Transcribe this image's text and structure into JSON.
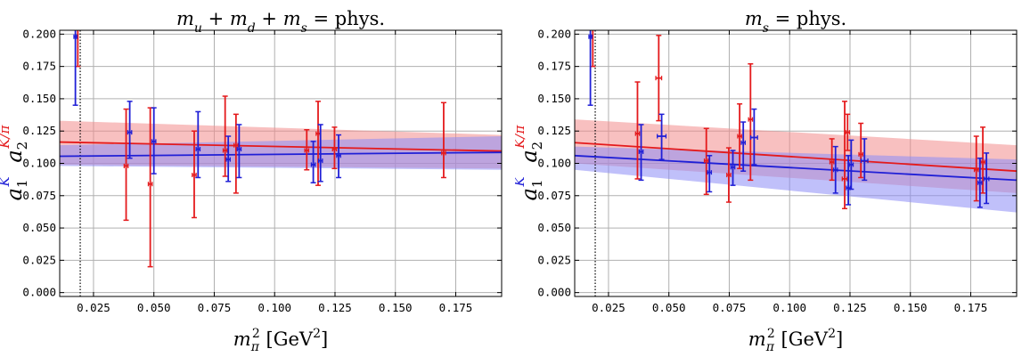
{
  "chart_data": [
    {
      "type": "scatter",
      "title": "m_u + m_d + m_s = phys.",
      "xlabel": "m_π² [GeV²]",
      "ylabel": "a_1^K  a_2^{K/π}",
      "xlim": [
        0.011,
        0.194
      ],
      "ylim": [
        -0.003,
        0.203
      ],
      "xticks": [
        "0.025",
        "0.050",
        "0.075",
        "0.100",
        "0.125",
        "0.150",
        "0.175"
      ],
      "yticks": [
        "0.000",
        "0.025",
        "0.050",
        "0.075",
        "0.100",
        "0.125",
        "0.150",
        "0.175",
        "0.200"
      ],
      "grid": true,
      "physical_point_x": 0.0195,
      "series": [
        {
          "color": "#e41a1c",
          "band_color": "#f28c8c",
          "fit": {
            "x": [
              0.011,
              0.194
            ],
            "y": [
              0.1165,
              0.1095
            ],
            "lo": [
              0.099,
              0.096
            ],
            "hi": [
              0.133,
              0.122
            ]
          },
          "points": [
            {
              "x": 0.0185,
              "y": 0.215,
              "ylo": 0.175,
              "yhi": 0.255,
              "xerr": 0.0006
            },
            {
              "x": 0.0385,
              "y": 0.098,
              "ylo": 0.056,
              "yhi": 0.142,
              "xerr": 0.0008
            },
            {
              "x": 0.0485,
              "y": 0.084,
              "ylo": 0.02,
              "yhi": 0.143,
              "xerr": 0.0008
            },
            {
              "x": 0.0667,
              "y": 0.091,
              "ylo": 0.058,
              "yhi": 0.125,
              "xerr": 0.0008
            },
            {
              "x": 0.0795,
              "y": 0.11,
              "ylo": 0.09,
              "yhi": 0.152,
              "xerr": 0.0008
            },
            {
              "x": 0.084,
              "y": 0.114,
              "ylo": 0.077,
              "yhi": 0.138,
              "xerr": 0.0008
            },
            {
              "x": 0.1133,
              "y": 0.11,
              "ylo": 0.095,
              "yhi": 0.126,
              "xerr": 0.0008
            },
            {
              "x": 0.118,
              "y": 0.123,
              "ylo": 0.083,
              "yhi": 0.148,
              "xerr": 0.0008
            },
            {
              "x": 0.1248,
              "y": 0.111,
              "ylo": 0.096,
              "yhi": 0.128,
              "xerr": 0.0008
            },
            {
              "x": 0.17,
              "y": 0.108,
              "ylo": 0.089,
              "yhi": 0.147,
              "xerr": 0.0008
            }
          ]
        },
        {
          "color": "#1f1fd6",
          "band_color": "#8c8cf5",
          "fit": {
            "x": [
              0.011,
              0.194
            ],
            "y": [
              0.1055,
              0.1085
            ],
            "lo": [
              0.098,
              0.095
            ],
            "hi": [
              0.114,
              0.121
            ]
          },
          "points": [
            {
              "x": 0.0175,
              "y": 0.198,
              "ylo": 0.145,
              "yhi": 0.25,
              "xerr": 0.0006
            },
            {
              "x": 0.04,
              "y": 0.124,
              "ylo": 0.104,
              "yhi": 0.148,
              "xerr": 0.0008
            },
            {
              "x": 0.05,
              "y": 0.117,
              "ylo": 0.092,
              "yhi": 0.143,
              "xerr": 0.0008
            },
            {
              "x": 0.0683,
              "y": 0.111,
              "ylo": 0.089,
              "yhi": 0.14,
              "xerr": 0.0008
            },
            {
              "x": 0.0808,
              "y": 0.103,
              "ylo": 0.086,
              "yhi": 0.121,
              "xerr": 0.0008
            },
            {
              "x": 0.0853,
              "y": 0.111,
              "ylo": 0.089,
              "yhi": 0.13,
              "xerr": 0.0008
            },
            {
              "x": 0.116,
              "y": 0.099,
              "ylo": 0.085,
              "yhi": 0.117,
              "xerr": 0.0008
            },
            {
              "x": 0.119,
              "y": 0.102,
              "ylo": 0.086,
              "yhi": 0.13,
              "xerr": 0.0008
            },
            {
              "x": 0.1265,
              "y": 0.106,
              "ylo": 0.089,
              "yhi": 0.122,
              "xerr": 0.0008
            }
          ]
        }
      ]
    },
    {
      "type": "scatter",
      "title": "m_s = phys.",
      "xlabel": "m_π² [GeV²]",
      "ylabel": "a_1^K  a_2^{K/π}",
      "xlim": [
        0.011,
        0.194
      ],
      "ylim": [
        -0.003,
        0.203
      ],
      "xticks": [
        "0.025",
        "0.050",
        "0.075",
        "0.100",
        "0.125",
        "0.150",
        "0.175"
      ],
      "yticks": [
        "0.000",
        "0.025",
        "0.050",
        "0.075",
        "0.100",
        "0.125",
        "0.150",
        "0.175",
        "0.200"
      ],
      "grid": true,
      "physical_point_x": 0.0195,
      "series": [
        {
          "color": "#e41a1c",
          "band_color": "#f28c8c",
          "fit": {
            "x": [
              0.011,
              0.194
            ],
            "y": [
              0.116,
              0.094
            ],
            "lo": [
              0.1,
              0.077
            ],
            "hi": [
              0.134,
              0.114
            ]
          },
          "points": [
            {
              "x": 0.0185,
              "y": 0.215,
              "ylo": 0.175,
              "yhi": 0.255,
              "xerr": 0.0006
            },
            {
              "x": 0.037,
              "y": 0.123,
              "ylo": 0.088,
              "yhi": 0.163,
              "xerr": 0.0008
            },
            {
              "x": 0.0458,
              "y": 0.166,
              "ylo": 0.133,
              "yhi": 0.199,
              "xerr": 0.0012
            },
            {
              "x": 0.0655,
              "y": 0.102,
              "ylo": 0.076,
              "yhi": 0.127,
              "xerr": 0.0008
            },
            {
              "x": 0.0748,
              "y": 0.091,
              "ylo": 0.07,
              "yhi": 0.112,
              "xerr": 0.0008
            },
            {
              "x": 0.0793,
              "y": 0.121,
              "ylo": 0.096,
              "yhi": 0.146,
              "xerr": 0.0008
            },
            {
              "x": 0.0838,
              "y": 0.134,
              "ylo": 0.087,
              "yhi": 0.177,
              "xerr": 0.0008
            },
            {
              "x": 0.1175,
              "y": 0.101,
              "ylo": 0.087,
              "yhi": 0.119,
              "xerr": 0.0008
            },
            {
              "x": 0.1228,
              "y": 0.088,
              "ylo": 0.065,
              "yhi": 0.148,
              "xerr": 0.001
            },
            {
              "x": 0.124,
              "y": 0.124,
              "ylo": 0.11,
              "yhi": 0.138,
              "xerr": 0.0008
            },
            {
              "x": 0.1295,
              "y": 0.107,
              "ylo": 0.089,
              "yhi": 0.131,
              "xerr": 0.0008
            },
            {
              "x": 0.1773,
              "y": 0.095,
              "ylo": 0.071,
              "yhi": 0.121,
              "xerr": 0.0008
            },
            {
              "x": 0.18,
              "y": 0.101,
              "ylo": 0.077,
              "yhi": 0.128,
              "xerr": 0.0008
            }
          ]
        },
        {
          "color": "#1f1fd6",
          "band_color": "#8c8cf5",
          "fit": {
            "x": [
              0.011,
              0.194
            ],
            "y": [
              0.106,
              0.087
            ],
            "lo": [
              0.095,
              0.062
            ],
            "hi": [
              0.113,
              0.103
            ]
          },
          "points": [
            {
              "x": 0.0175,
              "y": 0.198,
              "ylo": 0.145,
              "yhi": 0.25,
              "xerr": 0.0006
            },
            {
              "x": 0.0385,
              "y": 0.109,
              "ylo": 0.087,
              "yhi": 0.13,
              "xerr": 0.0008
            },
            {
              "x": 0.047,
              "y": 0.121,
              "ylo": 0.103,
              "yhi": 0.138,
              "xerr": 0.0018
            },
            {
              "x": 0.0668,
              "y": 0.093,
              "ylo": 0.078,
              "yhi": 0.106,
              "xerr": 0.0008
            },
            {
              "x": 0.0765,
              "y": 0.097,
              "ylo": 0.083,
              "yhi": 0.11,
              "xerr": 0.0008
            },
            {
              "x": 0.0808,
              "y": 0.116,
              "ylo": 0.094,
              "yhi": 0.132,
              "xerr": 0.0008
            },
            {
              "x": 0.0853,
              "y": 0.12,
              "ylo": 0.099,
              "yhi": 0.142,
              "xerr": 0.0014
            },
            {
              "x": 0.119,
              "y": 0.095,
              "ylo": 0.077,
              "yhi": 0.113,
              "xerr": 0.0008
            },
            {
              "x": 0.1243,
              "y": 0.081,
              "ylo": 0.068,
              "yhi": 0.106,
              "xerr": 0.0008
            },
            {
              "x": 0.1255,
              "y": 0.099,
              "ylo": 0.08,
              "yhi": 0.118,
              "xerr": 0.0008
            },
            {
              "x": 0.131,
              "y": 0.102,
              "ylo": 0.087,
              "yhi": 0.119,
              "xerr": 0.0014
            },
            {
              "x": 0.1788,
              "y": 0.085,
              "ylo": 0.066,
              "yhi": 0.104,
              "xerr": 0.0008
            },
            {
              "x": 0.1815,
              "y": 0.088,
              "ylo": 0.069,
              "yhi": 0.108,
              "xerr": 0.001
            }
          ]
        }
      ]
    }
  ]
}
